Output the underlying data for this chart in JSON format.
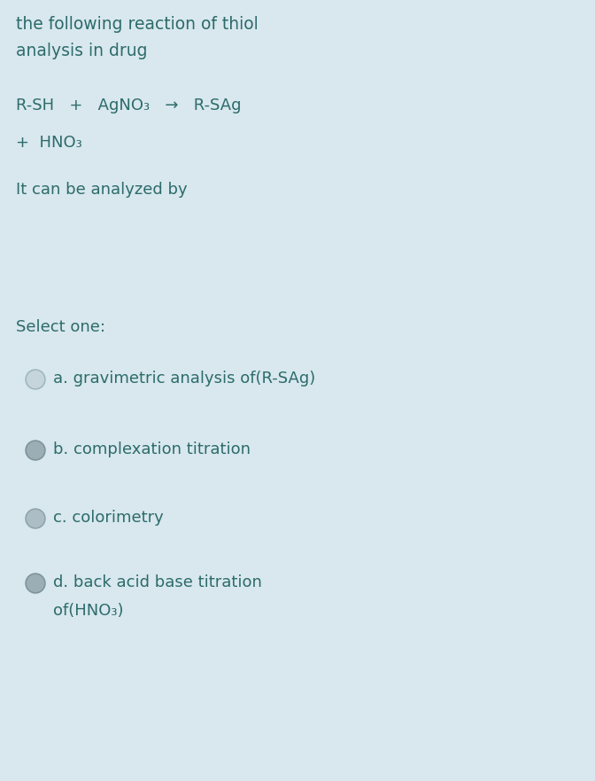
{
  "background_color": "#d8e8ee",
  "text_color": "#2d6b6b",
  "title_lines": [
    "the following reaction of thiol",
    "analysis in drug"
  ],
  "reaction_line1": "R-SH   +   AgNO₃   →   R-SAg",
  "reaction_line2": "+  HNO₃",
  "body_text": "It can be analyzed by",
  "select_text": "Select one:",
  "options": [
    "a. gravimetric analysis of(R-SAg)",
    "b. complexation titration",
    "c. colorimetry",
    "d. back acid base titration"
  ],
  "option_d_line2": "of(HNO₃)",
  "radio_fill_colors": [
    "#c5d5db",
    "#9badb5",
    "#adbdc5",
    "#9badb5"
  ],
  "radio_edge_colors": [
    "#9db5bd",
    "#7b9199",
    "#8da1a9",
    "#7b9199"
  ],
  "font_size_title": 13.5,
  "font_size_reaction": 13,
  "font_size_body": 13,
  "font_size_options": 13,
  "fig_width": 6.72,
  "fig_height": 8.81,
  "dpi": 100
}
